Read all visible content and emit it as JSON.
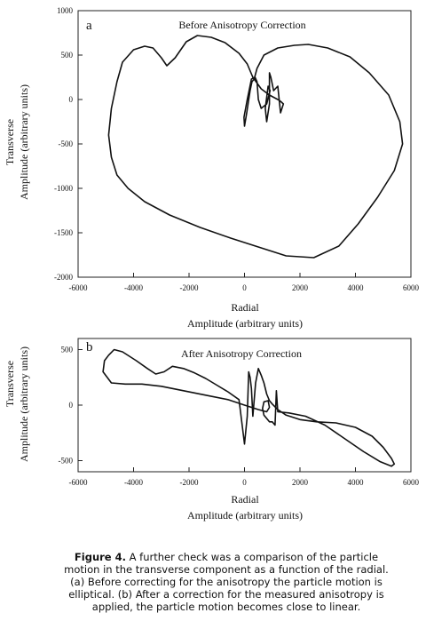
{
  "chart_data": [
    {
      "type": "line",
      "panel_label": "a",
      "title": "Before Anisotropy Correction",
      "xlabel_line1": "Radial",
      "xlabel_line2": "Amplitude (arbitrary units)",
      "ylabel_line1": "Transverse",
      "ylabel_line2": "Amplitude (arbitrary units)",
      "xlim": [
        -6000,
        6000
      ],
      "ylim": [
        -2000,
        1000
      ],
      "xticks": [
        -6000,
        -4000,
        -2000,
        0,
        2000,
        4000,
        6000
      ],
      "yticks": [
        1000,
        500,
        0,
        -500,
        -1000,
        -1500,
        -2000
      ],
      "xtick_labels": [
        "-6000",
        "-4000",
        "-2000",
        "0",
        "2000",
        "4000",
        "6000"
      ],
      "ytick_labels": [
        "1000",
        "500",
        "0",
        "-500",
        "-1000",
        "-1500",
        "-2000"
      ],
      "grid": false,
      "series": [
        {
          "x": [
            1400,
            1300,
            1200,
            1050,
            950,
            900,
            900,
            800,
            750,
            850,
            920,
            800,
            600,
            500,
            450,
            380,
            250,
            100,
            -20,
            0,
            80,
            200,
            270,
            350,
            450,
            700,
            1200,
            1800,
            2300,
            3000,
            3800,
            4500,
            5200,
            5600,
            5700,
            5400,
            4800,
            4100,
            3400,
            2500,
            1500,
            500,
            -500,
            -1600,
            -2700,
            -3600,
            -4200,
            -4600,
            -4800,
            -4900,
            -4800,
            -4600,
            -4400,
            -4000,
            -3600,
            -3300,
            -3000,
            -2800,
            -2500,
            -2100,
            -1700,
            -1200,
            -700,
            -200,
            100,
            300,
            600,
            900,
            1200,
            1300,
            1400
          ],
          "y": [
            -50,
            -150,
            150,
            100,
            250,
            300,
            -50,
            -250,
            -100,
            150,
            100,
            -50,
            -100,
            0,
            200,
            250,
            230,
            0,
            -200,
            -300,
            -150,
            100,
            200,
            230,
            350,
            500,
            580,
            610,
            620,
            580,
            480,
            300,
            50,
            -250,
            -500,
            -800,
            -1100,
            -1400,
            -1650,
            -1780,
            -1760,
            -1660,
            -1560,
            -1440,
            -1300,
            -1150,
            -1000,
            -850,
            -650,
            -400,
            -100,
            200,
            420,
            560,
            600,
            580,
            470,
            380,
            470,
            650,
            720,
            700,
            640,
            520,
            400,
            250,
            120,
            50,
            0,
            -20,
            -50
          ]
        }
      ]
    },
    {
      "type": "line",
      "panel_label": "b",
      "title": "After Anisotropy Correction",
      "xlabel_line1": "Radial",
      "xlabel_line2": "Amplitude (arbitrary units)",
      "ylabel_line1": "Transverse",
      "ylabel_line2": "Amplitude (arbitrary units)",
      "xlim": [
        -6000,
        6000
      ],
      "ylim": [
        -600,
        600
      ],
      "xticks": [
        -6000,
        -4000,
        -2000,
        0,
        2000,
        4000,
        6000
      ],
      "yticks": [
        500,
        0,
        -500
      ],
      "xtick_labels": [
        "-6000",
        "-4000",
        "-2000",
        "0",
        "2000",
        "4000",
        "6000"
      ],
      "ytick_labels": [
        "500",
        "0",
        "-500"
      ],
      "grid": false,
      "series": [
        {
          "x": [
            -4900,
            -4700,
            -4400,
            -3900,
            -3500,
            -3200,
            -2900,
            -2600,
            -2200,
            -1800,
            -1400,
            -1000,
            -600,
            -200,
            0,
            100,
            150,
            200,
            250,
            300,
            400,
            500,
            600,
            700,
            800,
            900,
            1000,
            1200,
            1500,
            2000,
            2600,
            3300,
            4000,
            4600,
            5000,
            5300,
            5400,
            5300,
            4900,
            4300,
            3600,
            2900,
            2200,
            1600,
            1200,
            1150,
            1100,
            1000,
            900,
            800,
            700,
            650,
            700,
            850,
            900,
            800,
            500,
            0,
            -600,
            -1400,
            -2200,
            -3000,
            -3700,
            -4300,
            -4800,
            -5100,
            -5050,
            -4900
          ],
          "y": [
            450,
            500,
            480,
            400,
            330,
            280,
            300,
            350,
            330,
            290,
            240,
            180,
            120,
            50,
            -350,
            -100,
            300,
            250,
            150,
            -100,
            200,
            330,
            270,
            200,
            100,
            40,
            10,
            -40,
            -90,
            -130,
            -150,
            -160,
            -200,
            -280,
            -380,
            -480,
            -530,
            -550,
            -510,
            -420,
            -300,
            -180,
            -100,
            -70,
            -60,
            130,
            -180,
            -150,
            -150,
            -120,
            -90,
            -30,
            30,
            40,
            -20,
            -60,
            -40,
            0,
            50,
            90,
            130,
            170,
            190,
            190,
            200,
            300,
            400,
            450
          ]
        }
      ]
    }
  ],
  "caption": {
    "label": "Figure 4.",
    "text": " A further check was a comparison of the particle motion in the transverse component as a function of the radial. (a) Before correcting for the anisotropy the particle motion is elliptical. (b) After a correction for the measured anisotropy is applied, the particle motion becomes close to linear."
  }
}
